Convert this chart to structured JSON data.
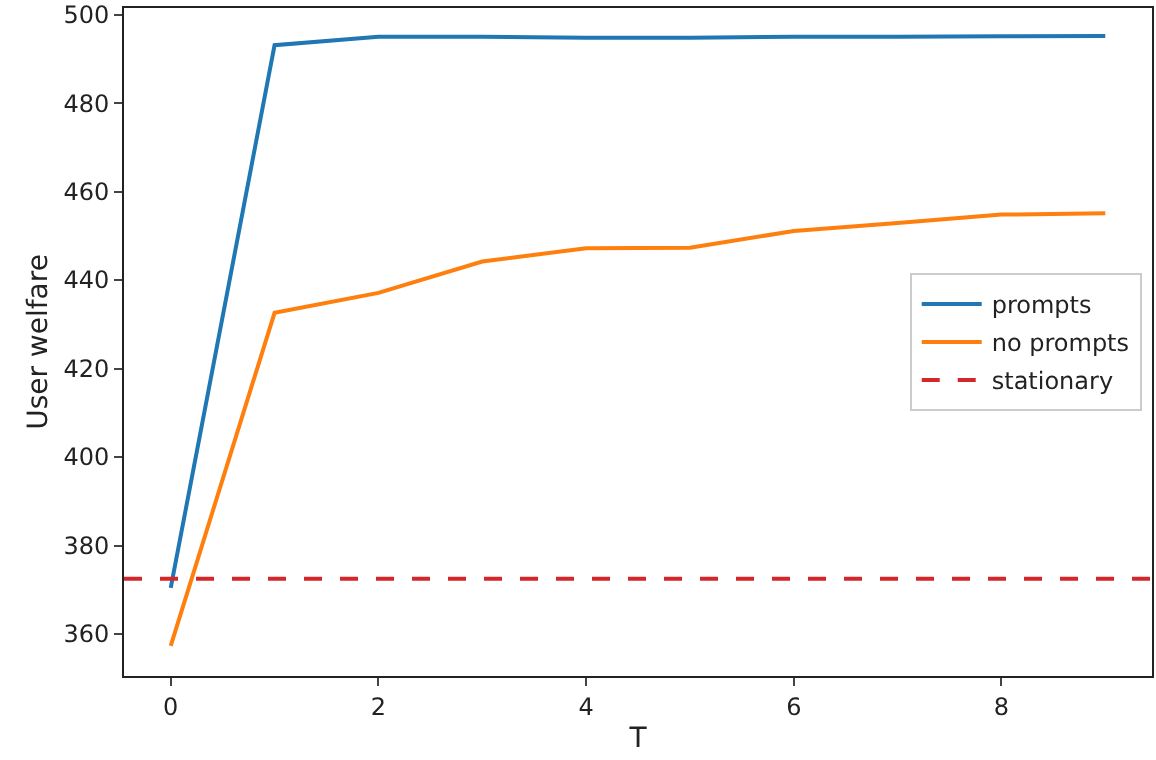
{
  "chart_data": {
    "type": "line",
    "xlabel": "T",
    "ylabel": "User welfare",
    "x": [
      0,
      1,
      2,
      3,
      4,
      5,
      6,
      7,
      8,
      9
    ],
    "series": [
      {
        "name": "prompts",
        "color": "#1f77b4",
        "values": [
          370.4,
          493.1,
          495,
          495,
          494.8,
          494.8,
          495,
          495,
          495.1,
          495.2
        ]
      },
      {
        "name": "no prompts",
        "color": "#ff7f0e",
        "values": [
          357.3,
          432.6,
          437.1,
          444.2,
          447.2,
          447.3,
          451.1,
          452.9,
          454.8,
          455.1
        ]
      }
    ],
    "ref_lines": [
      {
        "axis": "y",
        "value": 372.5,
        "label": "stationary",
        "color": "#d62728",
        "line_style": "dashed"
      }
    ],
    "xlim": [
      -0.45,
      9.45
    ],
    "xticks": [
      0,
      2,
      4,
      6,
      8
    ],
    "ylim": [
      350.5,
      501.5
    ],
    "yticks": [
      360,
      380,
      400,
      420,
      440,
      460,
      480,
      500
    ],
    "legend": "center right",
    "marker": "none",
    "line_style": "solid"
  }
}
